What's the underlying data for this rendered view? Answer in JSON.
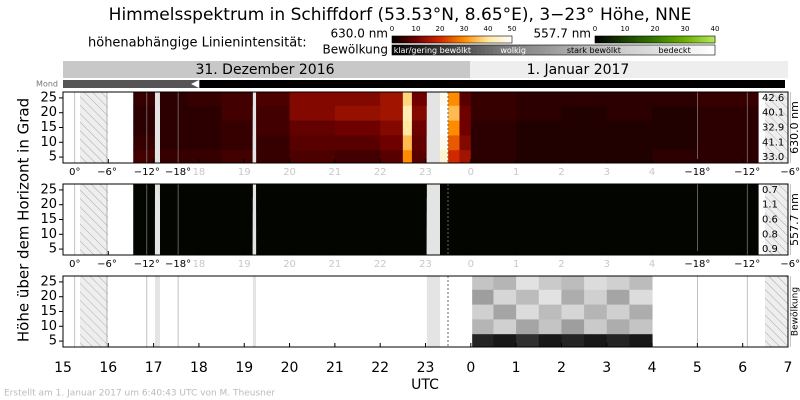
{
  "chart_data": {
    "type": "heatmap",
    "title": "Himmelsspektrum in Schiffdorf (53.53°N, 8.65°E), 3−23° Höhe, NNE",
    "intensity_title": "höhenabhängige Linienintensität:",
    "dates": [
      "31. Dezember 2016",
      "1. Januar 2017"
    ],
    "moon_label": "Mond",
    "xlabel": "UTC",
    "ylabel": "Höhe über dem Horizont in Grad",
    "footer": "Erstellt am 1. Januar 2017 um 6:40:43 UTC von M. Theusner",
    "xlim": [
      15,
      31
    ],
    "xticks": [
      15,
      16,
      17,
      18,
      19,
      20,
      21,
      22,
      23,
      {
        "value": 24,
        "label": "0"
      },
      {
        "value": 25,
        "label": "1"
      },
      {
        "value": 26,
        "label": "2"
      },
      {
        "value": 27,
        "label": "3"
      },
      {
        "value": 28,
        "label": "4"
      },
      {
        "value": 29,
        "label": "5"
      },
      {
        "value": 30,
        "label": "6"
      },
      {
        "value": 31,
        "label": "7"
      }
    ],
    "twilight": [
      {
        "value": 15.26,
        "label": "0°"
      },
      {
        "value": 15.97,
        "label": "−6°"
      },
      {
        "value": 16.85,
        "label": "−12°"
      },
      {
        "value": 17.54,
        "label": "−18°"
      },
      {
        "value": 29.0,
        "label": "−18°"
      },
      {
        "value": 30.1,
        "label": "−12°"
      },
      {
        "value": 31.05,
        "label": "−6°"
      }
    ],
    "panels": [
      {
        "name": "630.0 nm",
        "ylim": [
          3,
          27
        ],
        "yticks": [
          5,
          10,
          15,
          20,
          25
        ],
        "y": [
          5,
          10,
          15,
          20,
          25
        ],
        "clim": [
          0,
          50
        ],
        "cticks": [
          0,
          10,
          20,
          30,
          40,
          50
        ],
        "colormap": [
          "#000000",
          "#6e0000",
          "#d22800",
          "#ff8c00",
          "#ffe9a0",
          "#ffffff"
        ],
        "bins": [
          16.55,
          17.03,
          17.14,
          17.75,
          18.5,
          19.19,
          19.26,
          20,
          21,
          22,
          22.5,
          22.7,
          23.03,
          23.32,
          23.5,
          23.75,
          24,
          25,
          26,
          27,
          28,
          29,
          30.34
        ],
        "z": [
          [
            6,
            null,
            5,
            5,
            6,
            null,
            5,
            7,
            6,
            8,
            30,
            8,
            null,
            45,
            20,
            15,
            4,
            3,
            3,
            3,
            4,
            4
          ],
          [
            5,
            null,
            4,
            4,
            5,
            null,
            5,
            8,
            8,
            10,
            35,
            9,
            null,
            48,
            25,
            12,
            4,
            3,
            3,
            3,
            3,
            4
          ],
          [
            4,
            null,
            4,
            4,
            5,
            null,
            6,
            9,
            10,
            12,
            40,
            10,
            null,
            50,
            30,
            10,
            4,
            3,
            3,
            3,
            3,
            4
          ],
          [
            4,
            null,
            4,
            4,
            6,
            null,
            6,
            12,
            14,
            15,
            42,
            12,
            null,
            50,
            35,
            10,
            5,
            4,
            3,
            4,
            3,
            4
          ],
          [
            5,
            null,
            4,
            5,
            6,
            null,
            7,
            12,
            12,
            15,
            38,
            10,
            null,
            48,
            30,
            8,
            5,
            4,
            4,
            4,
            4,
            5
          ]
        ],
        "row_values": [
          {
            "value": 33,
            "label": "33.0"
          },
          41.1,
          32.9,
          40.1,
          42.6
        ]
      },
      {
        "name": "557.7 nm",
        "ylim": [
          3,
          27
        ],
        "yticks": [
          5,
          10,
          15,
          20,
          25
        ],
        "y": [
          5,
          10,
          15,
          20,
          25
        ],
        "clim": [
          0,
          40
        ],
        "cticks": [
          0,
          10,
          20,
          30,
          40
        ],
        "colormap": [
          "#000000",
          "#1a4000",
          "#357a00",
          "#6cb000",
          "#b8e860"
        ],
        "bins": [
          16.55,
          17.03,
          17.14,
          17.75,
          18.5,
          19.19,
          19.26,
          20,
          21,
          22,
          22.5,
          22.7,
          23.03,
          23.32,
          23.5,
          23.75,
          24,
          25,
          26,
          27,
          28,
          29,
          30.34
        ],
        "z": [
          [
            1,
            null,
            1,
            1,
            1,
            null,
            1,
            1,
            1,
            1,
            1,
            1,
            null,
            1,
            1,
            1,
            1,
            1,
            1,
            1,
            1,
            1
          ],
          [
            1,
            null,
            1,
            1,
            1,
            null,
            1,
            1,
            1,
            1,
            1,
            1,
            null,
            1,
            1,
            1,
            1,
            1,
            1,
            1,
            1,
            1
          ],
          [
            1,
            null,
            1,
            1,
            1,
            null,
            1,
            1,
            1,
            1,
            1,
            1,
            null,
            1,
            1,
            1,
            1,
            1,
            1,
            1,
            1,
            1
          ],
          [
            1,
            null,
            1,
            1,
            1,
            null,
            1,
            1,
            1,
            1,
            1,
            1,
            null,
            1,
            1,
            1,
            1,
            1,
            1,
            1,
            1,
            1
          ],
          [
            1,
            null,
            1,
            1,
            1,
            null,
            1,
            1,
            1,
            1,
            1,
            1,
            null,
            1,
            1,
            1,
            1,
            1,
            1,
            1,
            1,
            1
          ]
        ],
        "row_values": [
          0.9,
          0.8,
          0.6,
          1.1,
          0.7
        ]
      },
      {
        "name": "Bewölkung",
        "ylim": [
          3,
          27
        ],
        "yticks": [
          5,
          10,
          15,
          20,
          25
        ],
        "y": [
          5,
          10,
          15,
          20,
          25
        ],
        "clim": [
          0,
          3
        ],
        "colormap": [
          "#000000",
          "#777777",
          "#c4c4c4",
          "#ffffff"
        ],
        "categories": [
          "klar/gering bewölkt",
          "wolkig",
          "stark bewölkt",
          "bedeckt"
        ],
        "bins": [
          24.03,
          24.5,
          25,
          25.5,
          26,
          26.5,
          27,
          27.5,
          28
        ],
        "z": [
          [
            0.3,
            0.2,
            0.4,
            0.2,
            0.3,
            0.2,
            0.3,
            0.2
          ],
          [
            1.8,
            2.2,
            1.6,
            2.0,
            1.5,
            2.1,
            1.7,
            2.0
          ],
          [
            2.2,
            1.6,
            2.4,
            1.9,
            2.3,
            1.8,
            2.2,
            1.7
          ],
          [
            1.5,
            2.3,
            1.9,
            2.5,
            1.7,
            2.2,
            1.6,
            2.4
          ],
          [
            2.0,
            1.8,
            2.5,
            2.1,
            1.9,
            2.4,
            2.2,
            1.9
          ]
        ]
      }
    ]
  }
}
